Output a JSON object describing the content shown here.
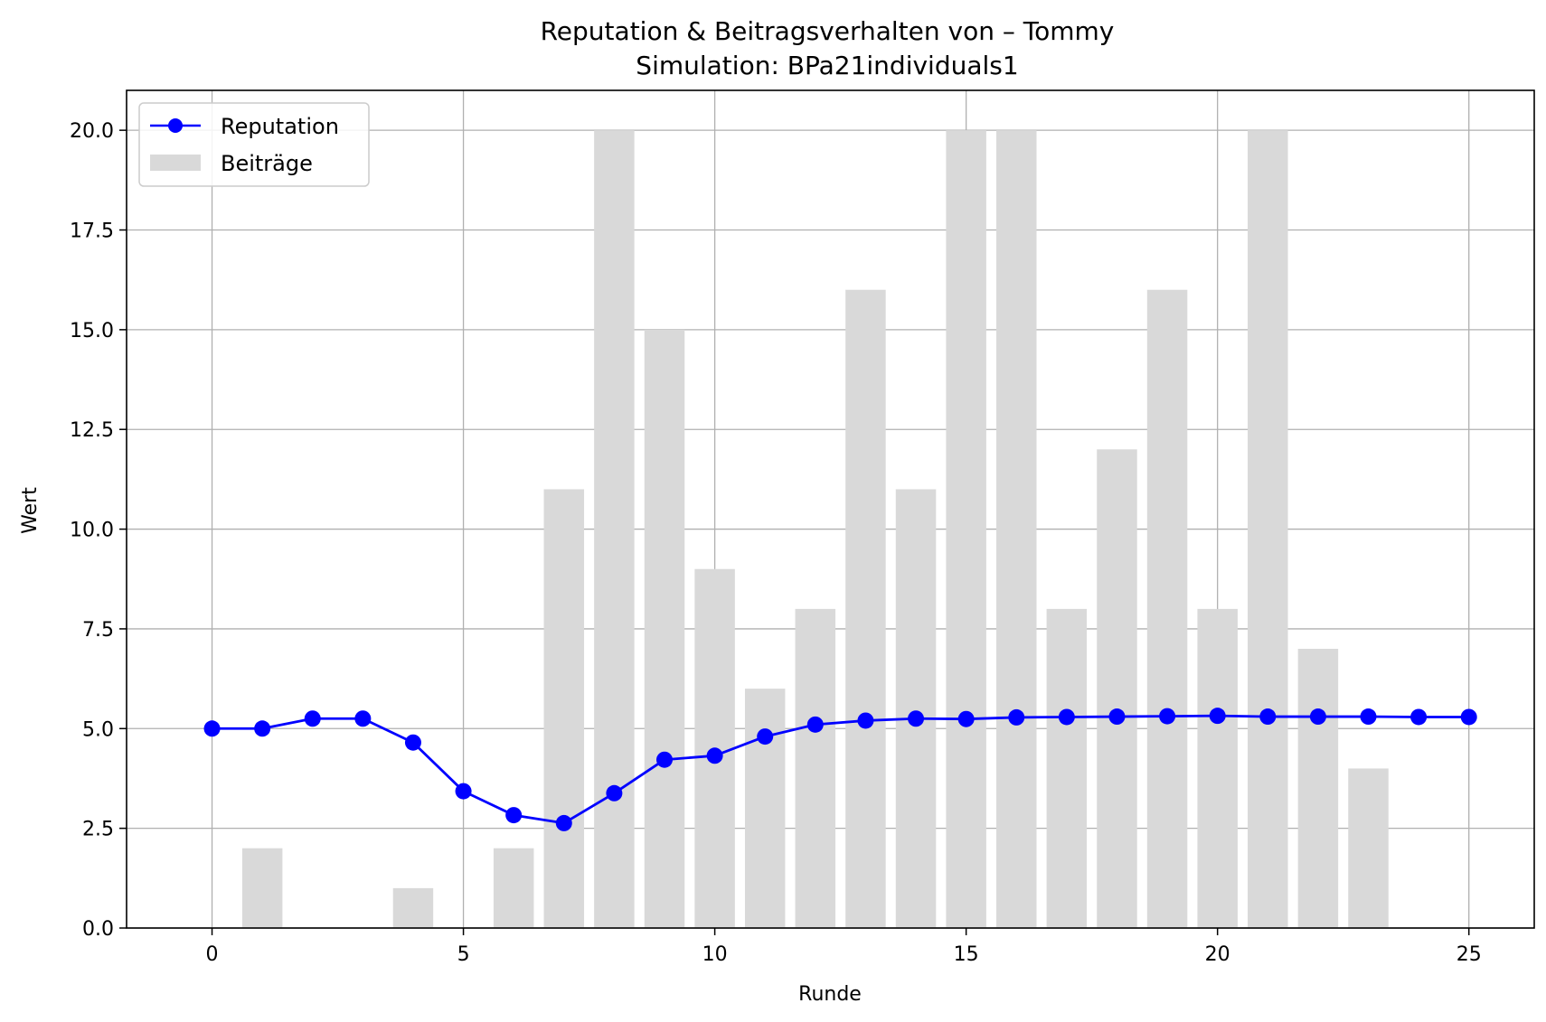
{
  "chart_data": {
    "type": "bar+line",
    "title": "Reputation & Beitragsverhalten von – Tommy",
    "subtitle": "Simulation: BPa21individuals1",
    "xlabel": "Runde",
    "ylabel": "Wert",
    "xlim": [
      -1.7,
      26.3
    ],
    "ylim": [
      0,
      21
    ],
    "xticks": [
      0,
      5,
      10,
      15,
      20,
      25
    ],
    "xtick_labels": [
      "0",
      "5",
      "10",
      "15",
      "20",
      "25"
    ],
    "yticks": [
      0,
      2.5,
      5,
      7.5,
      10,
      12.5,
      15,
      17.5,
      20
    ],
    "ytick_labels": [
      "0.0",
      "2.5",
      "5.0",
      "7.5",
      "10.0",
      "12.5",
      "15.0",
      "17.5",
      "20.0"
    ],
    "grid": true,
    "legend_position": "top-left",
    "series": [
      {
        "name": "Reputation",
        "kind": "line",
        "color": "#0000ff",
        "x": [
          0,
          1,
          2,
          3,
          4,
          5,
          6,
          7,
          8,
          9,
          10,
          11,
          12,
          13,
          14,
          15,
          16,
          17,
          18,
          19,
          20,
          21,
          22,
          23,
          24,
          25
        ],
        "values": [
          5.0,
          5.0,
          5.25,
          5.25,
          4.65,
          3.43,
          2.83,
          2.63,
          3.38,
          4.22,
          4.32,
          4.8,
          5.1,
          5.2,
          5.25,
          5.24,
          5.28,
          5.29,
          5.3,
          5.31,
          5.32,
          5.3,
          5.3,
          5.3,
          5.29,
          5.29
        ]
      },
      {
        "name": "Beiträge",
        "kind": "bar",
        "color": "#d9d9d9",
        "x": [
          0,
          1,
          2,
          3,
          4,
          5,
          6,
          7,
          8,
          9,
          10,
          11,
          12,
          13,
          14,
          15,
          16,
          17,
          18,
          19,
          20,
          21,
          22,
          23,
          24,
          25
        ],
        "values": [
          0,
          2,
          0,
          0,
          1,
          0,
          2,
          11,
          20,
          15,
          9,
          6,
          8,
          16,
          11,
          20,
          20,
          8,
          12,
          16,
          8,
          20,
          7,
          4,
          0,
          0
        ]
      }
    ]
  }
}
